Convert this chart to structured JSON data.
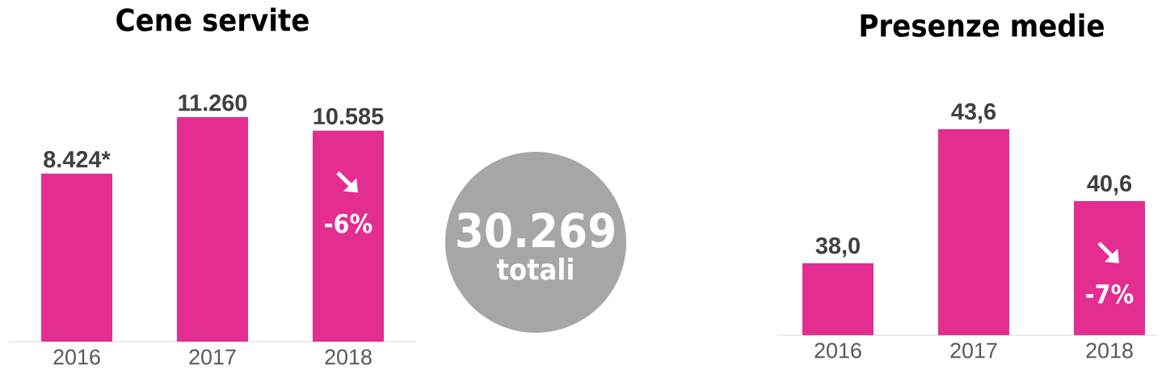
{
  "chart_data": [
    {
      "type": "bar",
      "title": "Cene servite",
      "categories": [
        "2016",
        "2017",
        "2018"
      ],
      "values": [
        8424,
        11260,
        10585
      ],
      "value_labels": [
        "8.424*",
        "11.260",
        "10.585"
      ],
      "color": "#e32d91",
      "annotations": [
        "-6%"
      ]
    },
    {
      "type": "other",
      "color": "#a6a6a6",
      "annotations": [
        "30.269",
        "totali"
      ]
    },
    {
      "type": "bar",
      "title": "Presenze medie",
      "categories": [
        "2016",
        "2017",
        "2018"
      ],
      "values": [
        38.0,
        43.6,
        40.6
      ],
      "value_labels": [
        "38,0",
        "43,6",
        "40,6"
      ],
      "color": "#e32d91",
      "ylim": [
        35,
        43.6
      ],
      "annotations": [
        "-7%"
      ]
    }
  ]
}
